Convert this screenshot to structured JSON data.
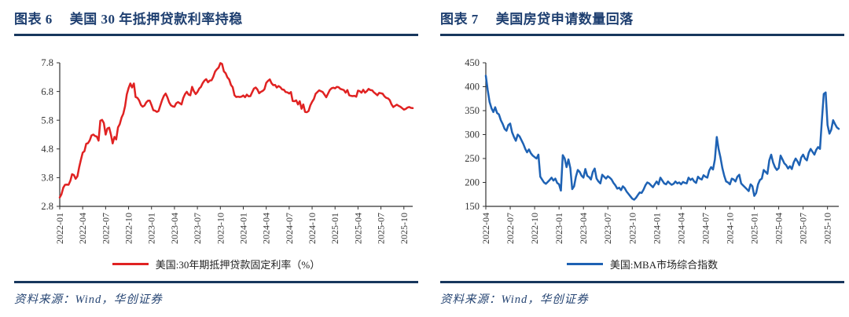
{
  "panels": [
    {
      "figure_label": "图表 6",
      "title": "美国 30 年抵押贷款利率持稳",
      "legend": "美国:30年期抵押贷款固定利率（%）",
      "source": "资料来源：Wind，华创证券"
    },
    {
      "figure_label": "图表 7",
      "title": "美国房贷申请数量回落",
      "legend": "美国:MBA市场综合指数",
      "source": "资料来源：Wind，华创证券"
    }
  ],
  "colors": {
    "accent_navy": "#17375D",
    "title_text": "#1E3F70",
    "line_red": "#E02222",
    "line_blue": "#1E62B4",
    "axis": "#333333"
  },
  "chart_data": [
    {
      "type": "line",
      "title": "美国 30 年抵押贷款利率持稳",
      "xlabel": "",
      "ylabel": "",
      "ylim": [
        2.8,
        7.8
      ],
      "ytick": 1.0,
      "y_decimals": 1,
      "grid": false,
      "legend_position": "bottom",
      "color": "#E02222",
      "x_start": "2022-01",
      "frequency": "weekly",
      "x_tick_labels": [
        "2022-01",
        "2022-04",
        "2022-07",
        "2022-10",
        "2023-01",
        "2023-04",
        "2023-07",
        "2023-10",
        "2024-01",
        "2024-04",
        "2024-07",
        "2024-10",
        "2025-01",
        "2025-04",
        "2025-07",
        "2025-10"
      ],
      "series": [
        {
          "name": "美国:30年期抵押贷款固定利率（%）",
          "values": [
            3.11,
            3.22,
            3.45,
            3.55,
            3.56,
            3.55,
            3.69,
            3.92,
            3.89,
            3.76,
            3.85,
            4.16,
            4.42,
            4.67,
            4.72,
            4.98,
            5.0,
            5.1,
            5.27,
            5.3,
            5.25,
            5.23,
            5.09,
            5.78,
            5.81,
            5.7,
            5.3,
            5.51,
            5.54,
            5.3,
            4.99,
            5.22,
            5.13,
            5.55,
            5.66,
            5.89,
            6.02,
            6.29,
            6.7,
            6.92,
            7.08,
            6.94,
            7.08,
            6.61,
            6.58,
            6.49,
            6.33,
            6.27,
            6.31,
            6.42,
            6.48,
            6.48,
            6.33,
            6.15,
            6.13,
            6.09,
            6.12,
            6.32,
            6.5,
            6.65,
            6.73,
            6.6,
            6.42,
            6.32,
            6.28,
            6.27,
            6.39,
            6.43,
            6.39,
            6.35,
            6.57,
            6.71,
            6.79,
            6.69,
            6.67,
            6.96,
            6.81,
            6.71,
            6.78,
            6.9,
            6.96,
            7.09,
            7.18,
            7.23,
            7.12,
            7.18,
            7.19,
            7.31,
            7.49,
            7.57,
            7.63,
            7.79,
            7.76,
            7.5,
            7.44,
            7.29,
            7.22,
            7.03,
            6.95,
            6.67,
            6.61,
            6.62,
            6.61,
            6.62,
            6.66,
            6.6,
            6.69,
            6.63,
            6.64,
            6.77,
            6.9,
            6.94,
            6.87,
            6.74,
            6.79,
            6.82,
            6.88,
            7.1,
            7.17,
            7.22,
            7.09,
            7.02,
            7.03,
            6.94,
            6.99,
            6.95,
            6.87,
            6.86,
            6.78,
            6.77,
            6.73,
            6.78,
            6.47,
            6.46,
            6.49,
            6.35,
            6.46,
            6.2,
            6.35,
            6.09,
            6.08,
            6.12,
            6.32,
            6.44,
            6.54,
            6.72,
            6.78,
            6.84,
            6.81,
            6.78,
            6.69,
            6.6,
            6.72,
            6.85,
            6.91,
            6.93,
            6.91,
            6.96,
            6.95,
            6.89,
            6.87,
            6.85,
            6.76,
            6.85,
            6.67,
            6.65,
            6.64,
            6.65,
            6.62,
            6.83,
            6.81,
            6.76,
            6.86,
            6.76,
            6.81,
            6.89,
            6.85,
            6.84,
            6.77,
            6.72,
            6.67,
            6.75,
            6.74,
            6.72,
            6.63,
            6.58,
            6.56,
            6.5,
            6.35,
            6.26,
            6.3,
            6.34,
            6.3,
            6.27,
            6.22,
            6.17,
            6.19,
            6.24,
            6.26,
            6.23,
            6.22
          ]
        }
      ]
    },
    {
      "type": "line",
      "title": "美国房贷申请数量回落",
      "xlabel": "",
      "ylabel": "",
      "ylim": [
        150,
        450
      ],
      "ytick": 50,
      "y_decimals": 0,
      "grid": false,
      "legend_position": "bottom",
      "color": "#1E62B4",
      "x_start": "2022-04",
      "frequency": "weekly",
      "x_tick_labels": [
        "2022-04",
        "2022-07",
        "2022-10",
        "2023-01",
        "2023-04",
        "2023-07",
        "2023-10",
        "2024-01",
        "2024-04",
        "2024-07",
        "2024-10",
        "2025-01",
        "2025-04",
        "2025-07",
        "2025-10"
      ],
      "series": [
        {
          "name": "美国:MBA市场综合指数",
          "values": [
            423,
            393,
            368,
            355,
            347,
            357,
            345,
            342,
            330,
            322,
            312,
            308,
            320,
            323,
            305,
            295,
            287,
            300,
            296,
            288,
            280,
            270,
            263,
            269,
            261,
            256,
            253,
            250,
            258,
            212,
            206,
            200,
            197,
            201,
            205,
            210,
            204,
            208,
            199,
            196,
            183,
            257,
            250,
            232,
            248,
            230,
            186,
            192,
            212,
            226,
            222,
            214,
            210,
            228,
            214,
            211,
            206,
            222,
            229,
            208,
            202,
            198,
            216,
            212,
            208,
            213,
            210,
            206,
            199,
            194,
            187,
            189,
            184,
            192,
            188,
            181,
            176,
            171,
            166,
            164,
            168,
            174,
            179,
            178,
            185,
            194,
            200,
            198,
            194,
            190,
            196,
            202,
            196,
            210,
            204,
            198,
            196,
            202,
            198,
            195,
            197,
            202,
            198,
            200,
            196,
            201,
            199,
            198,
            210,
            205,
            208,
            202,
            199,
            212,
            208,
            206,
            215,
            212,
            210,
            225,
            232,
            227,
            248,
            295,
            270,
            252,
            230,
            214,
            202,
            200,
            196,
            208,
            206,
            202,
            212,
            216,
            198,
            194,
            190,
            186,
            182,
            196,
            192,
            172,
            178,
            196,
            205,
            208,
            226,
            222,
            218,
            246,
            258,
            242,
            232,
            226,
            230,
            256,
            248,
            240,
            236,
            229,
            234,
            228,
            242,
            250,
            244,
            236,
            252,
            258,
            250,
            246,
            262,
            270,
            264,
            258,
            268,
            274,
            270,
            330,
            385,
            388,
            320,
            302,
            310,
            330,
            322,
            315,
            312
          ]
        }
      ]
    }
  ]
}
